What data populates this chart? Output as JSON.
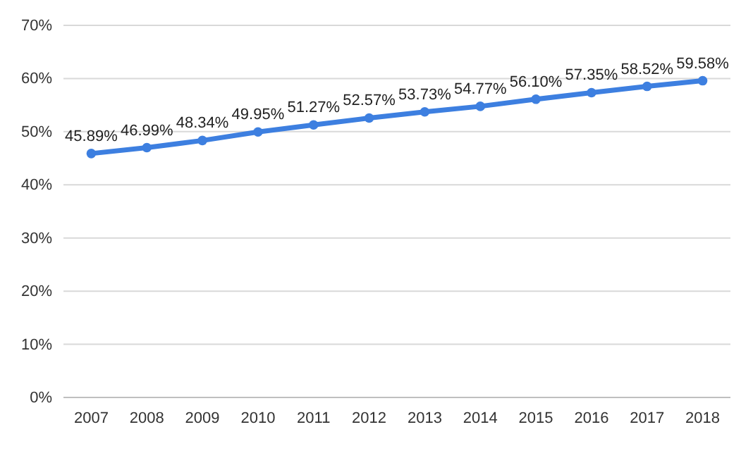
{
  "chart_data": {
    "type": "line",
    "categories": [
      "2007",
      "2008",
      "2009",
      "2010",
      "2011",
      "2012",
      "2013",
      "2014",
      "2015",
      "2016",
      "2017",
      "2018"
    ],
    "series": [
      {
        "color": "#3d7fe0",
        "values": [
          45.89,
          46.99,
          48.34,
          49.95,
          51.27,
          52.57,
          53.73,
          54.77,
          56.1,
          57.35,
          58.52,
          59.58
        ],
        "value_labels": [
          "45.89%",
          "46.99%",
          "48.34%",
          "49.95%",
          "51.27%",
          "52.57%",
          "53.73%",
          "54.77%",
          "56.10%",
          "57.35%",
          "58.52%",
          "59.58%"
        ]
      }
    ],
    "ylim": [
      0,
      70
    ],
    "yticks": [
      {
        "value": 0,
        "label": "0%"
      },
      {
        "value": 10,
        "label": "10%"
      },
      {
        "value": 20,
        "label": "20%"
      },
      {
        "value": 30,
        "label": "30%"
      },
      {
        "value": 40,
        "label": "40%"
      },
      {
        "value": 50,
        "label": "50%"
      },
      {
        "value": 60,
        "label": "60%"
      },
      {
        "value": 70,
        "label": "70%"
      }
    ],
    "grid": "y",
    "marker": "circle",
    "line_style": "solid"
  }
}
